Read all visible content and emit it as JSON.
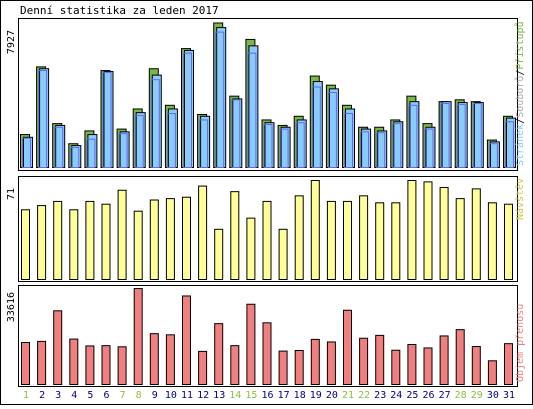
{
  "title": "Denní statistika za leden 2017",
  "colors": {
    "hits": "#7ab648",
    "files": "#88ccff",
    "pages": "#6666ee",
    "visits": "#ffff99",
    "kbytes": "#f08080",
    "weekend": "#8cbf3f",
    "weekday": "#00008b",
    "frame": "#000000"
  },
  "labels": {
    "top_hits": "Přístupů",
    "top_files": "Souborů",
    "top_pages": "Stránek",
    "visits": "Návštěv",
    "kbytes": "Objem přenosu",
    "sep": "/"
  },
  "chart_data": [
    {
      "type": "bar",
      "title": "Denní statistika za leden 2017",
      "categories": [
        "1",
        "2",
        "3",
        "4",
        "5",
        "6",
        "7",
        "8",
        "9",
        "10",
        "11",
        "12",
        "13",
        "14",
        "15",
        "16",
        "17",
        "18",
        "19",
        "20",
        "21",
        "22",
        "23",
        "24",
        "25",
        "26",
        "27",
        "28",
        "29",
        "30",
        "31"
      ],
      "weekend_days": [
        "1",
        "7",
        "8",
        "14",
        "15",
        "21",
        "22",
        "28",
        "29"
      ],
      "ymax_label": "7927",
      "ylim": [
        0,
        7927
      ],
      "series": [
        {
          "name": "Přístupů",
          "values": [
            1800,
            5500,
            2400,
            1300,
            2000,
            5300,
            2100,
            3200,
            5400,
            3400,
            6500,
            2900,
            7900,
            3900,
            7000,
            2600,
            2300,
            2800,
            5000,
            4500,
            3400,
            2200,
            2200,
            2600,
            3900,
            2400,
            3600,
            3700,
            3600,
            1500,
            2800
          ]
        },
        {
          "name": "Souborů",
          "values": [
            1650,
            5400,
            2300,
            1200,
            1800,
            5250,
            1950,
            3000,
            5050,
            3200,
            6400,
            2800,
            7650,
            3750,
            6650,
            2450,
            2200,
            2600,
            4700,
            4300,
            3200,
            2100,
            2000,
            2500,
            3600,
            2200,
            3600,
            3550,
            3550,
            1400,
            2700
          ]
        },
        {
          "name": "Stránek",
          "values": [
            1600,
            5300,
            2200,
            1100,
            1550,
            5200,
            1850,
            2850,
            4800,
            2950,
            6250,
            2600,
            7400,
            3700,
            6250,
            2350,
            2100,
            2450,
            4400,
            4100,
            2950,
            1950,
            1900,
            2400,
            3400,
            2100,
            3500,
            3450,
            3500,
            1300,
            2500
          ]
        }
      ]
    },
    {
      "type": "bar",
      "title": "Návštěv",
      "categories": [
        "1",
        "2",
        "3",
        "4",
        "5",
        "6",
        "7",
        "8",
        "9",
        "10",
        "11",
        "12",
        "13",
        "14",
        "15",
        "16",
        "17",
        "18",
        "19",
        "20",
        "21",
        "22",
        "23",
        "24",
        "25",
        "26",
        "27",
        "28",
        "29",
        "30",
        "31"
      ],
      "ymax_label": "71",
      "ylim": [
        0,
        71
      ],
      "series": [
        {
          "name": "Návštěv",
          "values": [
            50,
            53,
            56,
            50,
            56,
            54,
            64,
            49,
            57,
            58,
            59,
            67,
            36,
            63,
            44,
            56,
            36,
            60,
            71,
            56,
            56,
            60,
            55,
            55,
            71,
            70,
            66,
            58,
            65,
            55,
            54
          ]
        }
      ]
    },
    {
      "type": "bar",
      "title": "Objem přenosu",
      "categories": [
        "1",
        "2",
        "3",
        "4",
        "5",
        "6",
        "7",
        "8",
        "9",
        "10",
        "11",
        "12",
        "13",
        "14",
        "15",
        "16",
        "17",
        "18",
        "19",
        "20",
        "21",
        "22",
        "23",
        "24",
        "25",
        "26",
        "27",
        "28",
        "29",
        "30",
        "31"
      ],
      "ymax_label": "33616",
      "ylim": [
        0,
        33616
      ],
      "series": [
        {
          "name": "Objem přenosu",
          "values": [
            14700,
            15100,
            25800,
            15900,
            13500,
            13600,
            13200,
            33600,
            17800,
            17400,
            31000,
            11600,
            21300,
            13600,
            28100,
            21600,
            11700,
            11900,
            15800,
            14900,
            26000,
            16200,
            17200,
            12000,
            14000,
            12800,
            17000,
            19200,
            13300,
            8300,
            14300
          ]
        }
      ]
    }
  ]
}
